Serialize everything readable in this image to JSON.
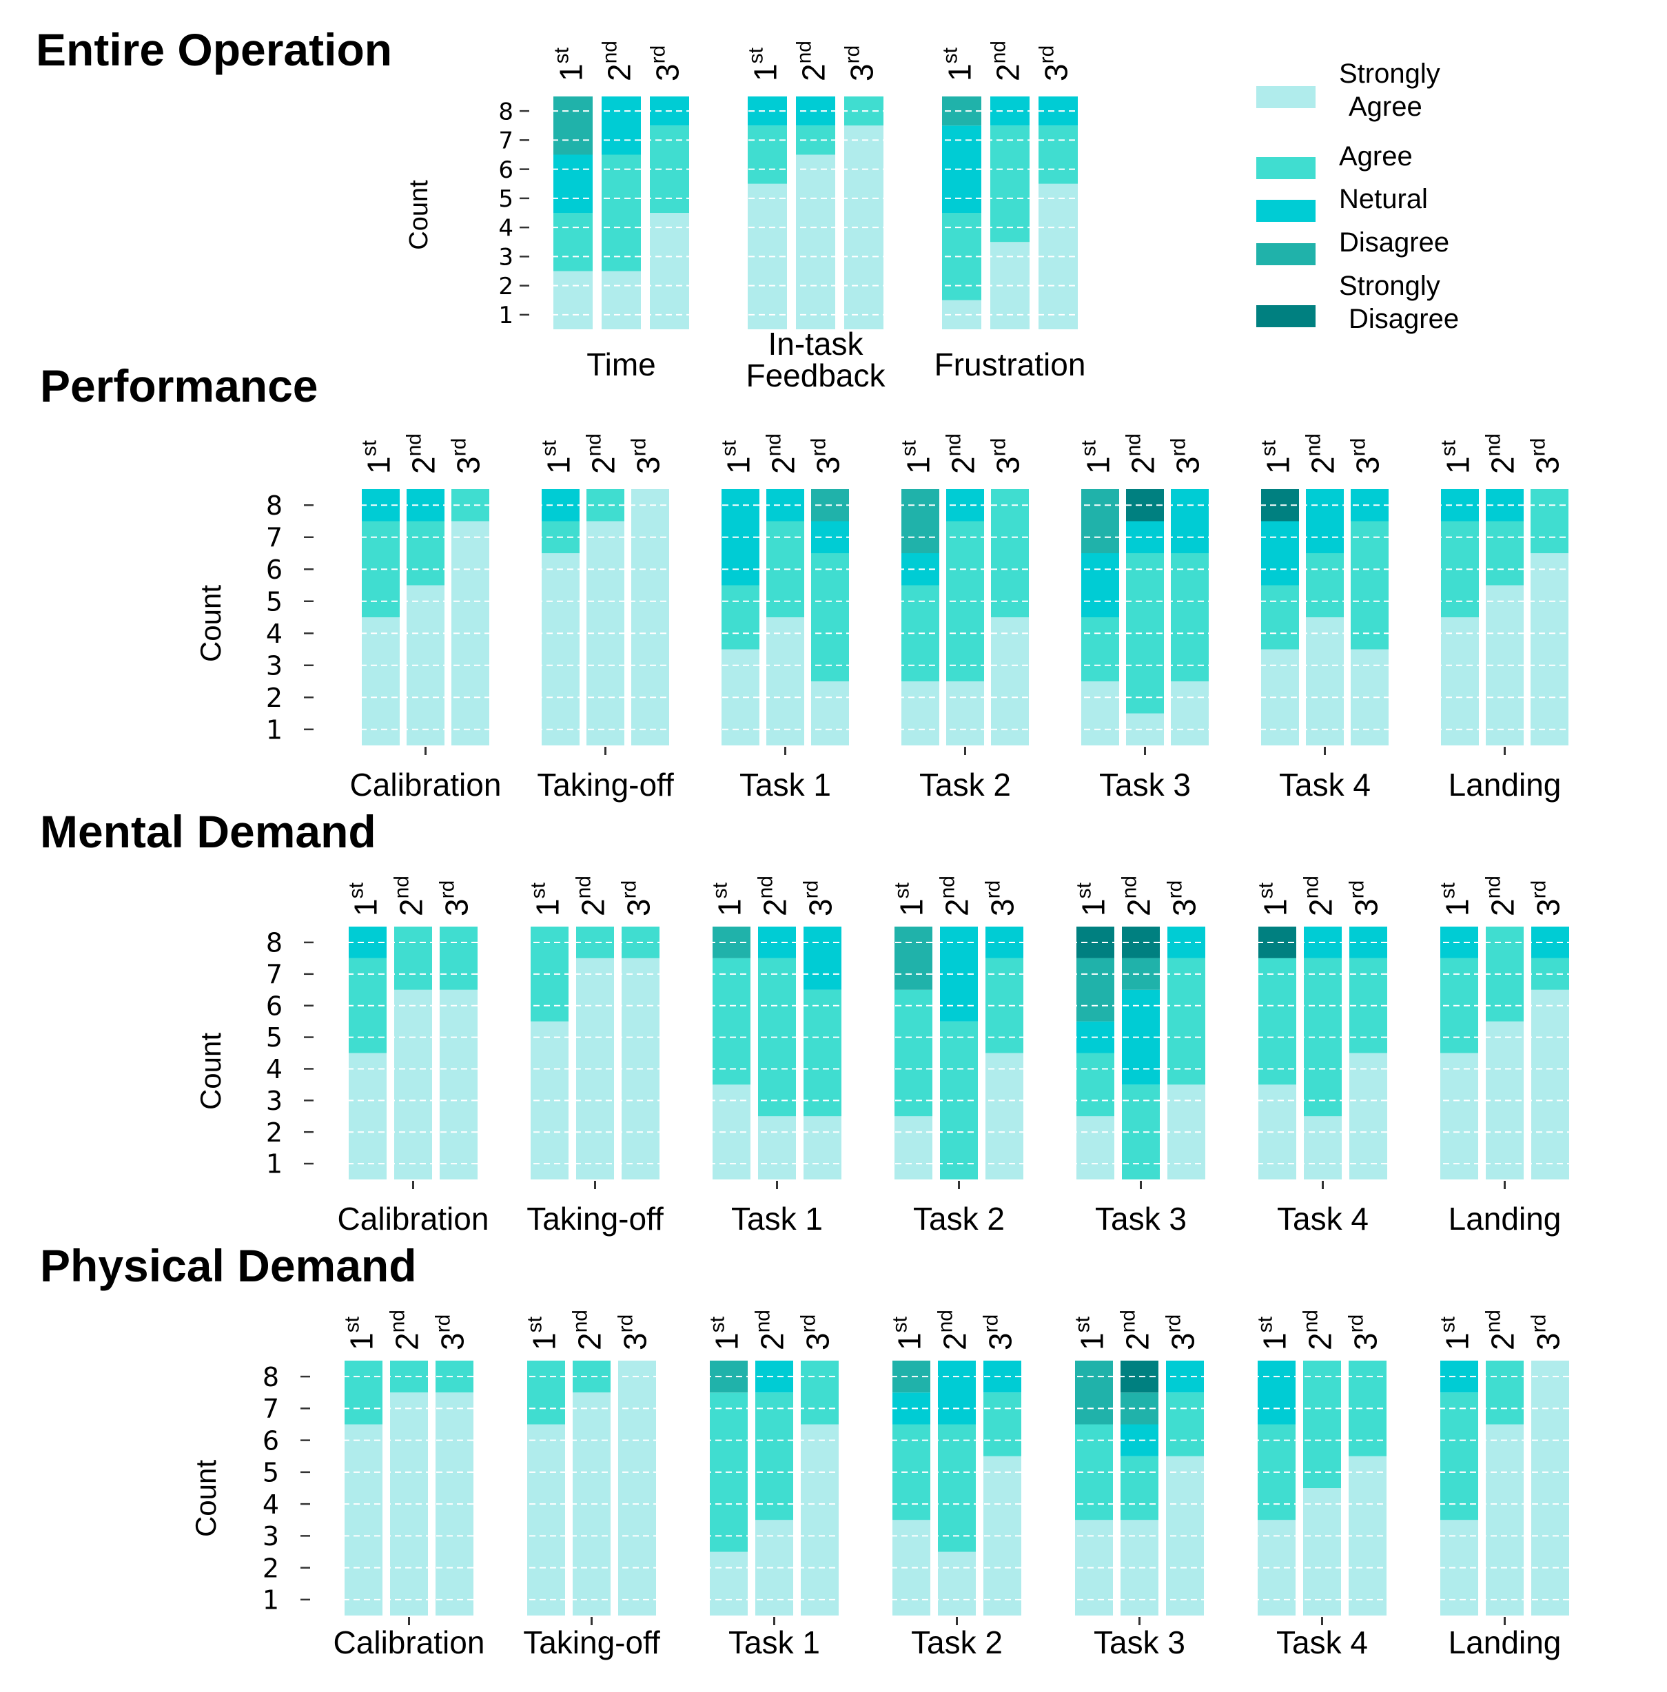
{
  "figure": {
    "legend": [
      {
        "label": "Strongly\nAgree",
        "color": "#b0ecec"
      },
      {
        "label": "Agree",
        "color": "#40ddd0"
      },
      {
        "label": "Netural",
        "color": "#00ccd4"
      },
      {
        "label": "Disagree",
        "color": "#20b2aa"
      },
      {
        "label": "Strongly\nDisagree",
        "color": "#008080"
      }
    ]
  },
  "chart_data": [
    {
      "type": "bar",
      "stacked": true,
      "title": "Entire Operation",
      "xlabel": "",
      "ylabel": "Count",
      "ylim": [
        0,
        8
      ],
      "yticks": [
        1,
        2,
        3,
        4,
        5,
        6,
        7,
        8
      ],
      "grid": "horizontal dashed",
      "legend_position": "right",
      "attempt_labels": [
        "1st",
        "2nd",
        "3rd"
      ],
      "categories": [
        "Time",
        "In-task\nFeedback",
        "Frustration"
      ],
      "levels": [
        "Strongly Agree",
        "Agree",
        "Netural",
        "Disagree",
        "Strongly Disagree"
      ],
      "counts": [
        [
          [
            2,
            2,
            2,
            2,
            0
          ],
          [
            2,
            4,
            2,
            0,
            0
          ],
          [
            4,
            3,
            1,
            0,
            0
          ]
        ],
        [
          [
            5,
            2,
            1,
            0,
            0
          ],
          [
            6,
            1,
            1,
            0,
            0
          ],
          [
            7,
            1,
            0,
            0,
            0
          ]
        ],
        [
          [
            1,
            3,
            3,
            1,
            0
          ],
          [
            3,
            4,
            1,
            0,
            0
          ],
          [
            5,
            2,
            1,
            0,
            0
          ]
        ]
      ]
    },
    {
      "type": "bar",
      "stacked": true,
      "title": "Performance",
      "xlabel": "",
      "ylabel": "Count",
      "ylim": [
        0,
        8
      ],
      "yticks": [
        1,
        2,
        3,
        4,
        5,
        6,
        7,
        8
      ],
      "grid": "horizontal dashed",
      "attempt_labels": [
        "1st",
        "2nd",
        "3rd"
      ],
      "categories": [
        "Calibration",
        "Taking-off",
        "Task 1",
        "Task 2",
        "Task 3",
        "Task 4",
        "Landing"
      ],
      "levels": [
        "Strongly Agree",
        "Agree",
        "Netural",
        "Disagree",
        "Strongly Disagree"
      ],
      "counts": [
        [
          [
            4,
            3,
            1,
            0,
            0
          ],
          [
            5,
            2,
            1,
            0,
            0
          ],
          [
            7,
            1,
            0,
            0,
            0
          ]
        ],
        [
          [
            6,
            1,
            1,
            0,
            0
          ],
          [
            7,
            1,
            0,
            0,
            0
          ],
          [
            8,
            0,
            0,
            0,
            0
          ]
        ],
        [
          [
            3,
            2,
            3,
            0,
            0
          ],
          [
            4,
            3,
            1,
            0,
            0
          ],
          [
            2,
            4,
            1,
            1,
            0
          ]
        ],
        [
          [
            2,
            3,
            1,
            2,
            0
          ],
          [
            2,
            5,
            1,
            0,
            0
          ],
          [
            4,
            4,
            0,
            0,
            0
          ]
        ],
        [
          [
            2,
            2,
            2,
            2,
            0
          ],
          [
            1,
            5,
            1,
            0,
            1
          ],
          [
            2,
            4,
            2,
            0,
            0
          ]
        ],
        [
          [
            3,
            2,
            2,
            0,
            1
          ],
          [
            4,
            2,
            2,
            0,
            0
          ],
          [
            3,
            4,
            1,
            0,
            0
          ]
        ],
        [
          [
            4,
            3,
            1,
            0,
            0
          ],
          [
            5,
            2,
            1,
            0,
            0
          ],
          [
            6,
            2,
            0,
            0,
            0
          ]
        ]
      ]
    },
    {
      "type": "bar",
      "stacked": true,
      "title": "Mental Demand",
      "xlabel": "",
      "ylabel": "Count",
      "ylim": [
        0,
        8
      ],
      "yticks": [
        1,
        2,
        3,
        4,
        5,
        6,
        7,
        8
      ],
      "grid": "horizontal dashed",
      "attempt_labels": [
        "1st",
        "2nd",
        "3rd"
      ],
      "categories": [
        "Calibration",
        "Taking-off",
        "Task 1",
        "Task 2",
        "Task 3",
        "Task 4",
        "Landing"
      ],
      "levels": [
        "Strongly Agree",
        "Agree",
        "Netural",
        "Disagree",
        "Strongly Disagree"
      ],
      "counts": [
        [
          [
            4,
            3,
            1,
            0,
            0
          ],
          [
            6,
            2,
            0,
            0,
            0
          ],
          [
            6,
            2,
            0,
            0,
            0
          ]
        ],
        [
          [
            5,
            3,
            0,
            0,
            0
          ],
          [
            7,
            1,
            0,
            0,
            0
          ],
          [
            7,
            1,
            0,
            0,
            0
          ]
        ],
        [
          [
            3,
            4,
            0,
            1,
            0
          ],
          [
            2,
            5,
            1,
            0,
            0
          ],
          [
            2,
            4,
            2,
            0,
            0
          ]
        ],
        [
          [
            2,
            4,
            0,
            2,
            0
          ],
          [
            0,
            5,
            3,
            0,
            0
          ],
          [
            4,
            3,
            1,
            0,
            0
          ]
        ],
        [
          [
            2,
            2,
            1,
            2,
            1
          ],
          [
            0,
            3,
            3,
            1,
            1
          ],
          [
            3,
            4,
            1,
            0,
            0
          ]
        ],
        [
          [
            3,
            4,
            0,
            0,
            1
          ],
          [
            2,
            5,
            1,
            0,
            0
          ],
          [
            4,
            3,
            1,
            0,
            0
          ]
        ],
        [
          [
            4,
            3,
            1,
            0,
            0
          ],
          [
            5,
            3,
            0,
            0,
            0
          ],
          [
            6,
            1,
            1,
            0,
            0
          ]
        ]
      ]
    },
    {
      "type": "bar",
      "stacked": true,
      "title": "Physical Demand",
      "xlabel": "",
      "ylabel": "Count",
      "ylim": [
        0,
        8
      ],
      "yticks": [
        1,
        2,
        3,
        4,
        5,
        6,
        7,
        8
      ],
      "grid": "horizontal dashed",
      "attempt_labels": [
        "1st",
        "2nd",
        "3rd"
      ],
      "categories": [
        "Calibration",
        "Taking-off",
        "Task 1",
        "Task 2",
        "Task 3",
        "Task 4",
        "Landing"
      ],
      "levels": [
        "Strongly Agree",
        "Agree",
        "Netural",
        "Disagree",
        "Strongly Disagree"
      ],
      "counts": [
        [
          [
            6,
            2,
            0,
            0,
            0
          ],
          [
            7,
            1,
            0,
            0,
            0
          ],
          [
            7,
            1,
            0,
            0,
            0
          ]
        ],
        [
          [
            6,
            2,
            0,
            0,
            0
          ],
          [
            7,
            1,
            0,
            0,
            0
          ],
          [
            8,
            0,
            0,
            0,
            0
          ]
        ],
        [
          [
            2,
            5,
            0,
            1,
            0
          ],
          [
            3,
            4,
            1,
            0,
            0
          ],
          [
            6,
            2,
            0,
            0,
            0
          ]
        ],
        [
          [
            3,
            3,
            1,
            1,
            0
          ],
          [
            2,
            4,
            2,
            0,
            0
          ],
          [
            5,
            2,
            1,
            0,
            0
          ]
        ],
        [
          [
            3,
            3,
            0,
            2,
            0
          ],
          [
            3,
            2,
            1,
            1,
            1
          ],
          [
            5,
            2,
            1,
            0,
            0
          ]
        ],
        [
          [
            3,
            3,
            2,
            0,
            0
          ],
          [
            4,
            4,
            0,
            0,
            0
          ],
          [
            5,
            3,
            0,
            0,
            0
          ]
        ],
        [
          [
            3,
            4,
            1,
            0,
            0
          ],
          [
            6,
            2,
            0,
            0,
            0
          ],
          [
            8,
            0,
            0,
            0,
            0
          ]
        ]
      ]
    }
  ]
}
